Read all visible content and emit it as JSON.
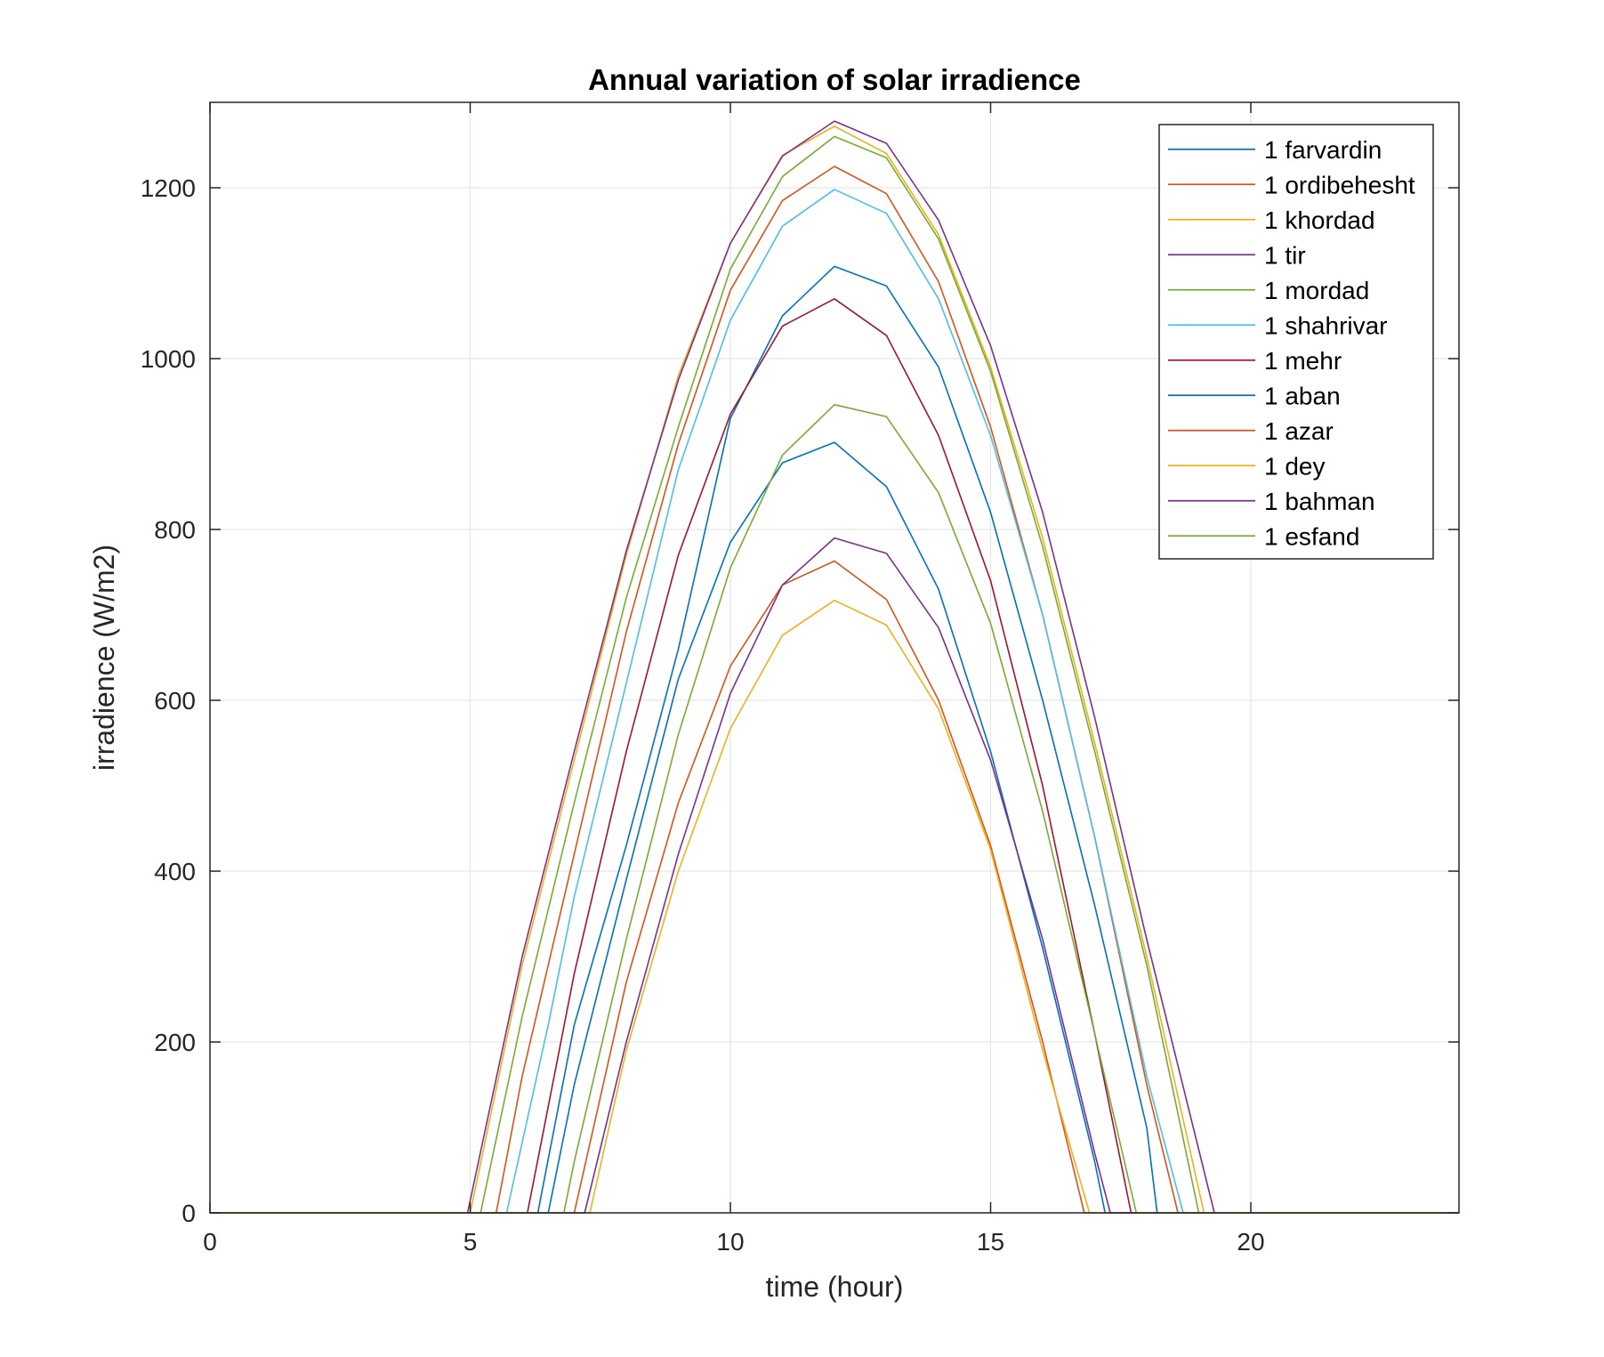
{
  "chart_data": {
    "type": "line",
    "title": "Annual variation of solar irradience",
    "xlabel": "time (hour)",
    "ylabel": "irradience (W/m2)",
    "xlim": [
      0,
      24
    ],
    "ylim": [
      0,
      1300
    ],
    "xticks": [
      0,
      5,
      10,
      15,
      20
    ],
    "yticks": [
      0,
      200,
      400,
      600,
      800,
      1000,
      1200
    ],
    "grid": true,
    "legend_position": "top-right",
    "series": [
      {
        "name": "1 farvardin",
        "color": "#0072BD",
        "points": [
          [
            0,
            0
          ],
          [
            6.3,
            0
          ],
          [
            7,
            220
          ],
          [
            8,
            430
          ],
          [
            9,
            660
          ],
          [
            10,
            930
          ],
          [
            11,
            1050
          ],
          [
            12,
            1108
          ],
          [
            13,
            1085
          ],
          [
            14,
            990
          ],
          [
            15,
            820
          ],
          [
            16,
            600
          ],
          [
            17,
            360
          ],
          [
            18,
            100
          ],
          [
            18.2,
            0
          ],
          [
            24,
            0
          ]
        ]
      },
      {
        "name": "1 ordibehesht",
        "color": "#D95319",
        "points": [
          [
            0,
            0
          ],
          [
            5.5,
            0
          ],
          [
            6,
            160
          ],
          [
            7,
            420
          ],
          [
            8,
            680
          ],
          [
            9,
            900
          ],
          [
            10,
            1080
          ],
          [
            11,
            1185
          ],
          [
            12,
            1225
          ],
          [
            13,
            1193
          ],
          [
            14,
            1090
          ],
          [
            15,
            920
          ],
          [
            16,
            700
          ],
          [
            17,
            440
          ],
          [
            18,
            150
          ],
          [
            18.6,
            0
          ],
          [
            24,
            0
          ]
        ]
      },
      {
        "name": "1 khordad",
        "color": "#EDB120",
        "points": [
          [
            0,
            0
          ],
          [
            5,
            0
          ],
          [
            6,
            290
          ],
          [
            7,
            530
          ],
          [
            8,
            770
          ],
          [
            9,
            980
          ],
          [
            10,
            1135
          ],
          [
            11,
            1238
          ],
          [
            12,
            1272
          ],
          [
            13,
            1240
          ],
          [
            14,
            1145
          ],
          [
            15,
            990
          ],
          [
            16,
            790
          ],
          [
            17,
            550
          ],
          [
            18,
            300
          ],
          [
            19.1,
            0
          ],
          [
            24,
            0
          ]
        ]
      },
      {
        "name": "1 tir",
        "color": "#7E2F8E",
        "points": [
          [
            0,
            0
          ],
          [
            4.95,
            0
          ],
          [
            6,
            300
          ],
          [
            7,
            540
          ],
          [
            8,
            775
          ],
          [
            9,
            975
          ],
          [
            10,
            1135
          ],
          [
            11,
            1237
          ],
          [
            12,
            1278
          ],
          [
            13,
            1252
          ],
          [
            14,
            1162
          ],
          [
            15,
            1015
          ],
          [
            16,
            820
          ],
          [
            17,
            580
          ],
          [
            18,
            320
          ],
          [
            19.3,
            0
          ],
          [
            24,
            0
          ]
        ]
      },
      {
        "name": "1 mordad",
        "color": "#77AC30",
        "points": [
          [
            0,
            0
          ],
          [
            5.2,
            0
          ],
          [
            6,
            230
          ],
          [
            7,
            480
          ],
          [
            8,
            720
          ],
          [
            9,
            920
          ],
          [
            10,
            1105
          ],
          [
            11,
            1213
          ],
          [
            12,
            1260
          ],
          [
            13,
            1235
          ],
          [
            14,
            1140
          ],
          [
            15,
            985
          ],
          [
            16,
            780
          ],
          [
            17,
            540
          ],
          [
            18,
            290
          ],
          [
            19,
            0
          ],
          [
            24,
            0
          ]
        ]
      },
      {
        "name": "1 shahrivar",
        "color": "#4DBEEE",
        "points": [
          [
            0,
            0
          ],
          [
            5.7,
            0
          ],
          [
            6.5,
            220
          ],
          [
            7,
            370
          ],
          [
            8,
            620
          ],
          [
            9,
            870
          ],
          [
            10,
            1045
          ],
          [
            11,
            1155
          ],
          [
            12,
            1198
          ],
          [
            13,
            1170
          ],
          [
            14,
            1070
          ],
          [
            15,
            910
          ],
          [
            16,
            700
          ],
          [
            17,
            440
          ],
          [
            18,
            160
          ],
          [
            18.7,
            0
          ],
          [
            24,
            0
          ]
        ]
      },
      {
        "name": "1 mehr",
        "color": "#A2142F",
        "points": [
          [
            0,
            0
          ],
          [
            6.1,
            0
          ],
          [
            7,
            280
          ],
          [
            8,
            540
          ],
          [
            9,
            770
          ],
          [
            10,
            935
          ],
          [
            11,
            1038
          ],
          [
            12,
            1070
          ],
          [
            13,
            1027
          ],
          [
            14,
            910
          ],
          [
            15,
            740
          ],
          [
            16,
            500
          ],
          [
            17,
            210
          ],
          [
            17.7,
            0
          ],
          [
            24,
            0
          ]
        ]
      },
      {
        "name": "1 aban",
        "color": "#0072BD",
        "points": [
          [
            0,
            0
          ],
          [
            6.5,
            0
          ],
          [
            7,
            150
          ],
          [
            8,
            390
          ],
          [
            9,
            625
          ],
          [
            10,
            785
          ],
          [
            11,
            878
          ],
          [
            12,
            902
          ],
          [
            13,
            850
          ],
          [
            14,
            730
          ],
          [
            15,
            540
          ],
          [
            16,
            310
          ],
          [
            17,
            60
          ],
          [
            17.2,
            0
          ],
          [
            24,
            0
          ]
        ]
      },
      {
        "name": "1 azar",
        "color": "#D95319",
        "points": [
          [
            0,
            0
          ],
          [
            7,
            0
          ],
          [
            8,
            270
          ],
          [
            9,
            480
          ],
          [
            10,
            640
          ],
          [
            11,
            735
          ],
          [
            12,
            763
          ],
          [
            13,
            718
          ],
          [
            14,
            600
          ],
          [
            15,
            430
          ],
          [
            16,
            200
          ],
          [
            16.8,
            0
          ],
          [
            24,
            0
          ]
        ]
      },
      {
        "name": "1 dey",
        "color": "#EDB120",
        "points": [
          [
            0,
            0
          ],
          [
            7.3,
            0
          ],
          [
            8,
            190
          ],
          [
            9,
            400
          ],
          [
            10,
            567
          ],
          [
            11,
            676
          ],
          [
            12,
            717
          ],
          [
            13,
            688
          ],
          [
            14,
            590
          ],
          [
            15,
            425
          ],
          [
            16,
            190
          ],
          [
            16.9,
            0
          ],
          [
            24,
            0
          ]
        ]
      },
      {
        "name": "1 bahman",
        "color": "#7E2F8E",
        "points": [
          [
            0,
            0
          ],
          [
            7.2,
            0
          ],
          [
            8,
            200
          ],
          [
            9,
            420
          ],
          [
            10,
            608
          ],
          [
            11,
            735
          ],
          [
            12,
            790
          ],
          [
            13,
            772
          ],
          [
            14,
            685
          ],
          [
            15,
            530
          ],
          [
            16,
            320
          ],
          [
            17,
            70
          ],
          [
            17.3,
            0
          ],
          [
            24,
            0
          ]
        ]
      },
      {
        "name": "1 esfand",
        "color": "#77AC30",
        "points": [
          [
            0,
            0
          ],
          [
            6.8,
            0
          ],
          [
            7,
            60
          ],
          [
            8,
            320
          ],
          [
            9,
            560
          ],
          [
            10,
            755
          ],
          [
            11,
            887
          ],
          [
            12,
            946
          ],
          [
            13,
            932
          ],
          [
            14,
            843
          ],
          [
            15,
            690
          ],
          [
            16,
            470
          ],
          [
            17,
            210
          ],
          [
            17.8,
            0
          ],
          [
            24,
            0
          ]
        ]
      }
    ]
  }
}
